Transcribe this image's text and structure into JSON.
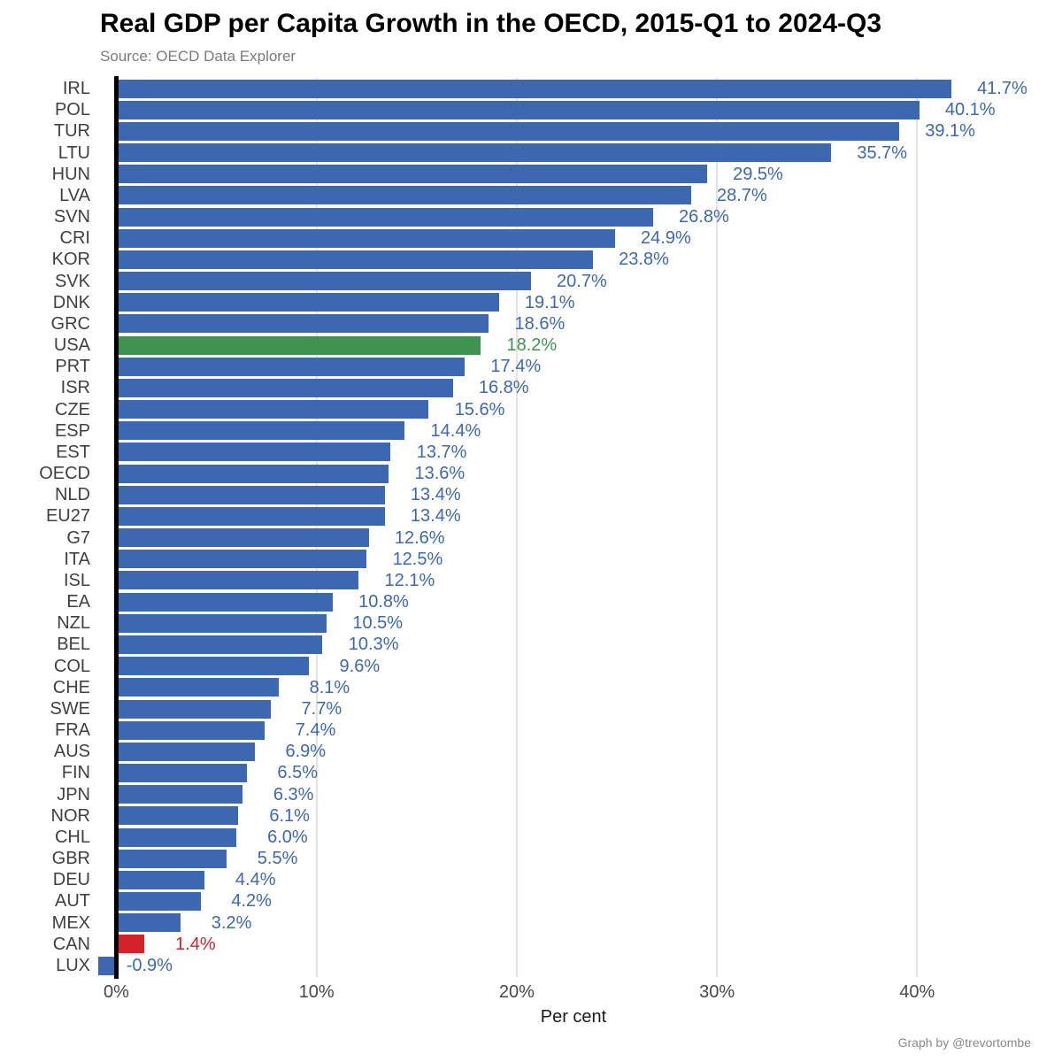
{
  "page": {
    "attribution": "Graph by @trevortombe"
  },
  "chart_data": {
    "type": "bar",
    "orientation": "horizontal",
    "title": "Real GDP per Capita Growth in the OECD, 2015-Q1 to 2024-Q3",
    "source": "Source: OECD Data Explorer",
    "xlabel": "Per cent",
    "xlim": [
      -2.5,
      46
    ],
    "grid": "vertical-major",
    "x_ticks": [
      {
        "value": 0,
        "label": "0%"
      },
      {
        "value": 10,
        "label": "10%"
      },
      {
        "value": 20,
        "label": "20%"
      },
      {
        "value": 30,
        "label": "30%"
      },
      {
        "value": 40,
        "label": "40%"
      }
    ],
    "palette": {
      "default": "#3C68B1",
      "usa": "#3F9350",
      "can": "#D2222A",
      "gridline": "#E3E3E3",
      "zero_axis": "#000000",
      "category_text": "#404040",
      "tick_text": "#474747",
      "title_text": "#000000",
      "source_text": "#7B7B7B",
      "attribution_text": "#8A8A8A"
    },
    "bars": [
      {
        "category": "IRL",
        "value": 41.7,
        "label": "41.7%",
        "color_key": "default"
      },
      {
        "category": "POL",
        "value": 40.1,
        "label": "40.1%",
        "color_key": "default"
      },
      {
        "category": "TUR",
        "value": 39.1,
        "label": "39.1%",
        "color_key": "default"
      },
      {
        "category": "LTU",
        "value": 35.7,
        "label": "35.7%",
        "color_key": "default"
      },
      {
        "category": "HUN",
        "value": 29.5,
        "label": "29.5%",
        "color_key": "default"
      },
      {
        "category": "LVA",
        "value": 28.7,
        "label": "28.7%",
        "color_key": "default"
      },
      {
        "category": "SVN",
        "value": 26.8,
        "label": "26.8%",
        "color_key": "default"
      },
      {
        "category": "CRI",
        "value": 24.9,
        "label": "24.9%",
        "color_key": "default"
      },
      {
        "category": "KOR",
        "value": 23.8,
        "label": "23.8%",
        "color_key": "default"
      },
      {
        "category": "SVK",
        "value": 20.7,
        "label": "20.7%",
        "color_key": "default"
      },
      {
        "category": "DNK",
        "value": 19.1,
        "label": "19.1%",
        "color_key": "default"
      },
      {
        "category": "GRC",
        "value": 18.6,
        "label": "18.6%",
        "color_key": "default"
      },
      {
        "category": "USA",
        "value": 18.2,
        "label": "18.2%",
        "color_key": "usa"
      },
      {
        "category": "PRT",
        "value": 17.4,
        "label": "17.4%",
        "color_key": "default"
      },
      {
        "category": "ISR",
        "value": 16.8,
        "label": "16.8%",
        "color_key": "default"
      },
      {
        "category": "CZE",
        "value": 15.6,
        "label": "15.6%",
        "color_key": "default"
      },
      {
        "category": "ESP",
        "value": 14.4,
        "label": "14.4%",
        "color_key": "default"
      },
      {
        "category": "EST",
        "value": 13.7,
        "label": "13.7%",
        "color_key": "default"
      },
      {
        "category": "OECD",
        "value": 13.6,
        "label": "13.6%",
        "color_key": "default"
      },
      {
        "category": "NLD",
        "value": 13.4,
        "label": "13.4%",
        "color_key": "default"
      },
      {
        "category": "EU27",
        "value": 13.4,
        "label": "13.4%",
        "color_key": "default"
      },
      {
        "category": "G7",
        "value": 12.6,
        "label": "12.6%",
        "color_key": "default"
      },
      {
        "category": "ITA",
        "value": 12.5,
        "label": "12.5%",
        "color_key": "default"
      },
      {
        "category": "ISL",
        "value": 12.1,
        "label": "12.1%",
        "color_key": "default"
      },
      {
        "category": "EA",
        "value": 10.8,
        "label": "10.8%",
        "color_key": "default"
      },
      {
        "category": "NZL",
        "value": 10.5,
        "label": "10.5%",
        "color_key": "default"
      },
      {
        "category": "BEL",
        "value": 10.3,
        "label": "10.3%",
        "color_key": "default"
      },
      {
        "category": "COL",
        "value": 9.6,
        "label": "9.6%",
        "color_key": "default"
      },
      {
        "category": "CHE",
        "value": 8.1,
        "label": "8.1%",
        "color_key": "default"
      },
      {
        "category": "SWE",
        "value": 7.7,
        "label": "7.7%",
        "color_key": "default"
      },
      {
        "category": "FRA",
        "value": 7.4,
        "label": "7.4%",
        "color_key": "default"
      },
      {
        "category": "AUS",
        "value": 6.9,
        "label": "6.9%",
        "color_key": "default"
      },
      {
        "category": "FIN",
        "value": 6.5,
        "label": "6.5%",
        "color_key": "default"
      },
      {
        "category": "JPN",
        "value": 6.3,
        "label": "6.3%",
        "color_key": "default"
      },
      {
        "category": "NOR",
        "value": 6.1,
        "label": "6.1%",
        "color_key": "default"
      },
      {
        "category": "CHL",
        "value": 6.0,
        "label": "6.0%",
        "color_key": "default"
      },
      {
        "category": "GBR",
        "value": 5.5,
        "label": "5.5%",
        "color_key": "default"
      },
      {
        "category": "DEU",
        "value": 4.4,
        "label": "4.4%",
        "color_key": "default"
      },
      {
        "category": "AUT",
        "value": 4.2,
        "label": "4.2%",
        "color_key": "default"
      },
      {
        "category": "MEX",
        "value": 3.2,
        "label": "3.2%",
        "color_key": "default"
      },
      {
        "category": "CAN",
        "value": 1.4,
        "label": "1.4%",
        "color_key": "can"
      },
      {
        "category": "LUX",
        "value": -0.9,
        "label": "-0.9%",
        "color_key": "default"
      }
    ]
  }
}
